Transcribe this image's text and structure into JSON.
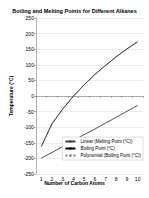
{
  "chart_data": {
    "type": "line",
    "title": "Boiling and Melting Points for Different Alkanes",
    "x_label": "Number of Carbon Atoms",
    "y_label": "Temperature (°C)",
    "categories": [
      "1",
      "2",
      "3",
      "4",
      "5",
      "6",
      "7",
      "8",
      "9",
      "10"
    ],
    "series": [
      {
        "name": "Linear (Melting Point (°C))",
        "color": "#404040",
        "line_style": "solid",
        "marker": "none",
        "values": [
          -199,
          -181,
          -162,
          -143,
          -124,
          -106,
          -87,
          -68,
          -49,
          -30
        ]
      },
      {
        "name": "Boiling Point (°C)",
        "color": "#000000",
        "line_style": "solid",
        "marker": "none",
        "values": [
          -162,
          -89,
          -42,
          -1,
          36,
          69,
          98,
          126,
          151,
          174
        ]
      },
      {
        "name": "Polynomial (Boiling Point (°C))",
        "color": "#7f7f7f",
        "line_style": "dotted",
        "marker": "none",
        "values": [
          -160,
          -92,
          -40,
          0,
          36,
          68,
          97,
          125,
          150,
          173
        ]
      }
    ],
    "ylim": [
      -250,
      250
    ],
    "yticks": [
      -250,
      -200,
      -150,
      -100,
      -50,
      0,
      50,
      100,
      150,
      200,
      250
    ],
    "grid": true,
    "legend": "right"
  }
}
